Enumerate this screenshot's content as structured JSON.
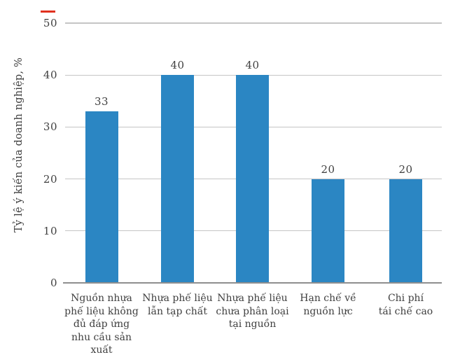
{
  "colors": {
    "bar": "#2B86C3",
    "text": "#3F3F3F",
    "gridline": "#C5C5C5",
    "baseline": "#8F8F8F",
    "top_left_dash": "#E0301E"
  },
  "chart_data": {
    "type": "bar",
    "title": "",
    "xlabel": "",
    "ylabel": "Tỷ lệ ý kiến của doanh nghiệp, %",
    "ylim": [
      0,
      50
    ],
    "yticks": [
      0,
      10,
      20,
      30,
      40,
      50
    ],
    "grid": "horizontal gridlines at each y tick",
    "legend": "none",
    "categories": [
      "Nguồn nhựa phế liệu không đủ đáp ứng nhu cầu sản xuất",
      "Nhựa phế liệu lẫn tạp chất",
      "Nhựa phế liệu chưa phân loại tại nguồn",
      "Hạn chế về nguồn lực",
      "Chi phí tái chế cao"
    ],
    "category_label_lines": [
      [
        "Nguồn nhựa",
        "phế liệu không",
        "đủ đáp ứng",
        "nhu cầu sản",
        "xuất"
      ],
      [
        "Nhựa phế liệu",
        "lẫn tạp chất"
      ],
      [
        "Nhựa phế liệu",
        "chưa phân loại",
        "tại nguồn"
      ],
      [
        "Hạn chế về",
        "nguồn lực"
      ],
      [
        "Chi phí",
        "tái chế cao"
      ]
    ],
    "values": [
      33,
      40,
      40,
      20,
      20
    ],
    "value_labels": [
      "33",
      "40",
      "40",
      "20",
      "20"
    ]
  }
}
